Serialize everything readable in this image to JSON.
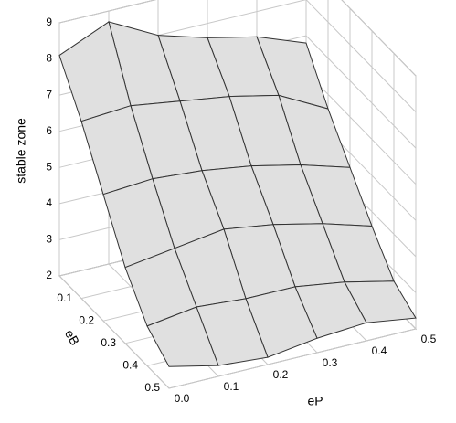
{
  "chart_data": {
    "type": "surface",
    "z_label": "stable zone",
    "x_label": "eP",
    "y_label": "eB",
    "x": [
      0,
      0.1,
      0.2,
      0.3,
      0.4,
      0.5
    ],
    "y": [
      0,
      0.1,
      0.2,
      0.3,
      0.4,
      0.5
    ],
    "z": [
      [
        8.1,
        8.7,
        8.0,
        7.6,
        7.3,
        6.8
      ],
      [
        6.9,
        7.0,
        6.8,
        6.6,
        6.3,
        5.6
      ],
      [
        5.5,
        5.6,
        5.5,
        5.3,
        5.0,
        4.6
      ],
      [
        4.1,
        4.3,
        4.5,
        4.3,
        4.0,
        3.6
      ],
      [
        3.1,
        3.3,
        3.2,
        3.2,
        3.0,
        2.7
      ],
      [
        2.6,
        2.3,
        2.2,
        2.4,
        2.5,
        2.3
      ]
    ],
    "xlim": [
      0,
      0.5
    ],
    "xticks": [
      {
        "value": 0,
        "label": "0.0"
      },
      0.1,
      0.2,
      0.3,
      0.4,
      0.5
    ],
    "ylim": [
      0,
      0.5
    ],
    "yticks": [
      0.1,
      0.2,
      0.3,
      0.4,
      0.5
    ],
    "zlim": [
      2,
      9
    ],
    "zticks": [
      2,
      3,
      4,
      5,
      6,
      7,
      8,
      9
    ],
    "color": "#e0e0e0",
    "grid": true
  }
}
